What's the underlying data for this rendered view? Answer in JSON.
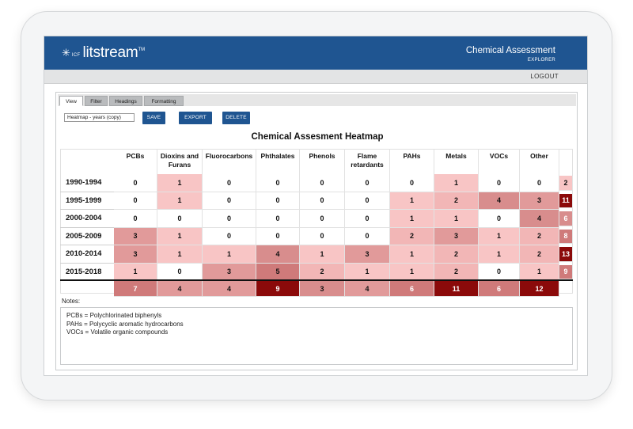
{
  "header": {
    "logo_text": "litstream",
    "logo_mark": "✳",
    "logo_prefix": "ICF",
    "logo_tm": "TM",
    "title": "Chemical Assessment",
    "subtitle": "EXPLORER"
  },
  "subbar": {
    "logout_label": "LOGOUT"
  },
  "tabs": [
    {
      "label": "View",
      "active": true
    },
    {
      "label": "Filter",
      "active": false
    },
    {
      "label": "Headings",
      "active": false
    },
    {
      "label": "Formatting",
      "active": false
    }
  ],
  "toolbar": {
    "view_select_value": "Heatmap - years (copy)",
    "save_label": "SAVE",
    "export_label": "EXPORT",
    "delete_label": "DELETE"
  },
  "heatmap": {
    "title": "Chemical Assesment Heatmap",
    "columns": [
      "PCBs",
      "Dioxins and Furans",
      "Fluorocarbons",
      "Phthalates",
      "Phenols",
      "Flame retardants",
      "PAHs",
      "Metals",
      "VOCs",
      "Other"
    ],
    "rows": [
      "1990-1994",
      "1995-1999",
      "2000-2004",
      "2005-2009",
      "2010-2014",
      "2015-2018"
    ],
    "values": [
      [
        0,
        1,
        0,
        0,
        0,
        0,
        0,
        1,
        0,
        0
      ],
      [
        0,
        1,
        0,
        0,
        0,
        0,
        1,
        2,
        4,
        3
      ],
      [
        0,
        0,
        0,
        0,
        0,
        0,
        1,
        1,
        0,
        4
      ],
      [
        3,
        1,
        0,
        0,
        0,
        0,
        2,
        3,
        1,
        2
      ],
      [
        3,
        1,
        1,
        4,
        1,
        3,
        1,
        2,
        1,
        2
      ],
      [
        1,
        0,
        3,
        5,
        2,
        1,
        1,
        2,
        0,
        1
      ]
    ],
    "row_totals": [
      2,
      11,
      6,
      8,
      13,
      9
    ],
    "column_totals": [
      7,
      4,
      4,
      9,
      3,
      4,
      6,
      11,
      6,
      12
    ],
    "colors": {
      "zero": "#ffffff",
      "level1": "#f8c5c5",
      "level2": "#f2b6b6",
      "level3": "#e19a9a",
      "level4": "#d88d8d",
      "level5": "#cf7a7a",
      "strong": "#8b0a0a"
    }
  },
  "notes": {
    "label": "Notes:",
    "lines": [
      "PCBs = Polychlorinated biphenyls",
      "PAHs = Polycyclic aromatic hydrocarbons",
      "VOCs = Volatile organic compounds"
    ]
  },
  "colors": {
    "brand_blue": "#1f5591",
    "subbar_gray": "#e3e4e5"
  }
}
